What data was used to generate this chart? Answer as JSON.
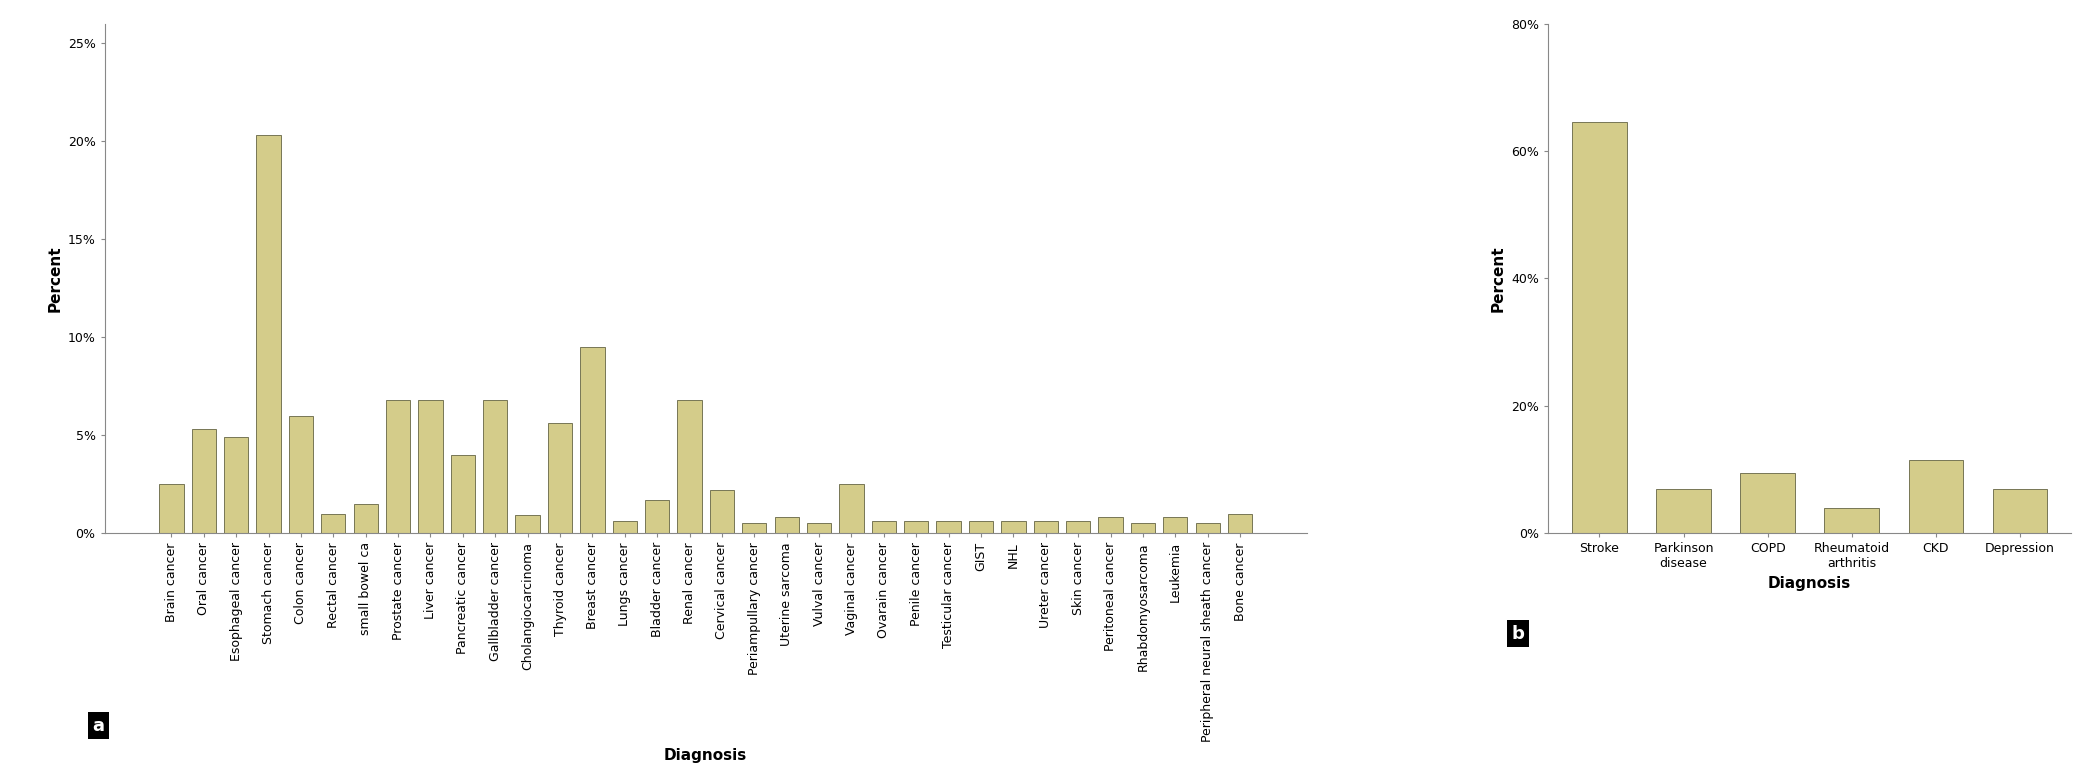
{
  "chart_a": {
    "categories": [
      "Brain cancer",
      "Oral cancer",
      "Esophageal cancer",
      "Stomach cancer",
      "Colon cancer",
      "Rectal cancer",
      "small bowel ca",
      "Prostate cancer",
      "Liver cancer",
      "Pancreatic cancer",
      "Gallbladder cancer",
      "Cholangiocarcinoma",
      "Thyroid cancer",
      "Breast cancer",
      "Lungs cancer",
      "Bladder cancer",
      "Renal cancer",
      "Cervical cancer",
      "Periampullary cancer",
      "Uterine sarcoma",
      "Vulval cancer",
      "Vaginal cancer",
      "Ovarain cancer",
      "Penile cancer",
      "Testicular cancer",
      "GIST",
      "NHL",
      "Ureter cancer",
      "Skin cancer",
      "Peritoneal cancer",
      "Rhabdomyosarcoma",
      "Leukemia",
      "Peripheral neural sheath cancer",
      "Bone cancer"
    ],
    "values": [
      2.5,
      5.3,
      4.9,
      20.3,
      6.0,
      1.0,
      1.5,
      6.8,
      6.8,
      4.0,
      6.8,
      0.9,
      5.6,
      9.5,
      0.6,
      1.7,
      6.8,
      2.2,
      0.5,
      0.8,
      0.5,
      2.5,
      0.6,
      0.6,
      0.6,
      0.6,
      0.6,
      0.6,
      0.6,
      0.8,
      0.5,
      0.8,
      0.5,
      1.0
    ],
    "ylabel": "Percent",
    "xlabel": "Diagnosis",
    "yticks": [
      0,
      5,
      10,
      15,
      20,
      25
    ],
    "ytick_labels": [
      "0%",
      "5%",
      "10%",
      "15%",
      "20%",
      "25%"
    ],
    "ylim": [
      0,
      26
    ],
    "bar_color": "#d4cc8a",
    "bar_edge_color": "#4a4a2a",
    "label": "a"
  },
  "chart_b": {
    "categories": [
      "Stroke",
      "Parkinson\ndisease",
      "COPD",
      "Rheumatoid\narthritis",
      "CKD",
      "Depression"
    ],
    "values": [
      64.5,
      7.0,
      9.5,
      4.0,
      11.5,
      7.0
    ],
    "ylabel": "Percent",
    "xlabel": "Diagnosis",
    "yticks": [
      0,
      20,
      40,
      60,
      80
    ],
    "ytick_labels": [
      "0%",
      "20%",
      "40%",
      "60%",
      "80%"
    ],
    "ylim": [
      0,
      80
    ],
    "bar_color": "#d4cc8a",
    "bar_edge_color": "#4a4a2a",
    "label": "b"
  },
  "background_color": "#ffffff",
  "tick_fontsize": 9,
  "axis_label_fontsize": 11
}
